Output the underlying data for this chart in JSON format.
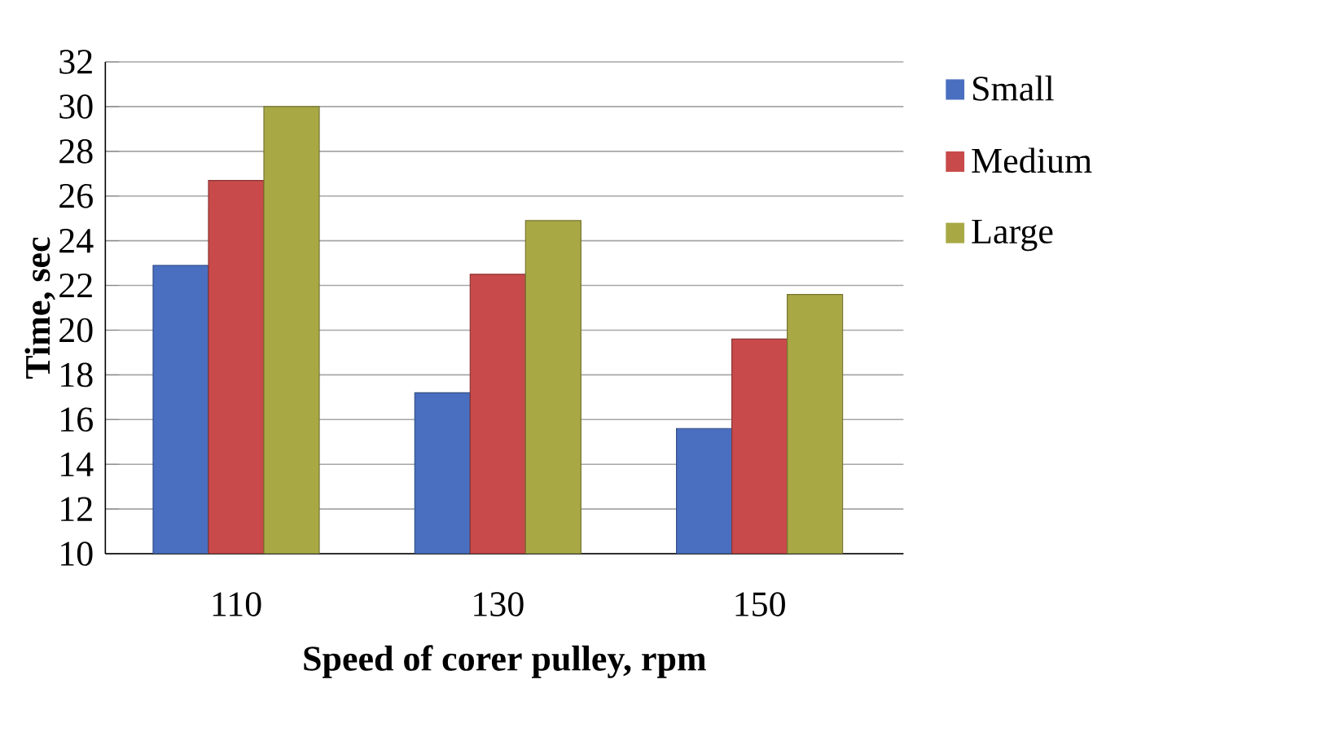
{
  "chart_data": {
    "type": "bar",
    "xlabel": "Speed of corer pulley, rpm",
    "ylabel": "Time, sec",
    "categories": [
      "110",
      "130",
      "150"
    ],
    "series": [
      {
        "name": "Small",
        "color": "#4a6fc0",
        "values": [
          22.9,
          17.2,
          15.6
        ]
      },
      {
        "name": "Medium",
        "color": "#c84a4a",
        "values": [
          26.7,
          22.5,
          19.6
        ]
      },
      {
        "name": "Large",
        "color": "#a8a845",
        "values": [
          30.0,
          24.9,
          21.6
        ]
      }
    ],
    "ylim": [
      10,
      32
    ],
    "yticks": [
      10,
      12,
      14,
      16,
      18,
      20,
      22,
      24,
      26,
      28,
      30,
      32
    ],
    "grid": "y",
    "legend": "right"
  }
}
